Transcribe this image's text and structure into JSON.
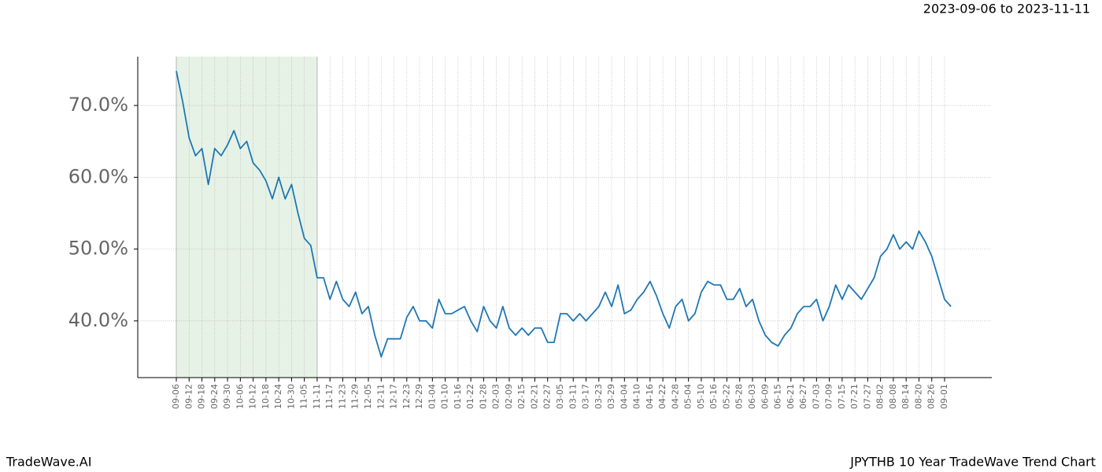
{
  "chart_data": {
    "type": "line",
    "subtitle": "2023-09-06 to 2023-11-11",
    "footer_left": "TradeWave.AI",
    "footer_right": "JPYTHB 10 Year TradeWave Trend Chart",
    "categories": [
      "09-06",
      null,
      "09-12",
      null,
      "09-18",
      null,
      "09-24",
      null,
      "09-30",
      null,
      "10-06",
      null,
      "10-12",
      null,
      "10-18",
      null,
      "10-24",
      null,
      "10-30",
      null,
      "11-05",
      null,
      "11-11",
      null,
      "11-17",
      null,
      "11-23",
      null,
      "11-29",
      null,
      "12-05",
      null,
      "12-11",
      null,
      "12-17",
      null,
      "12-23",
      null,
      "12-29",
      null,
      "01-04",
      null,
      "01-10",
      null,
      "01-16",
      null,
      "01-22",
      null,
      "01-28",
      null,
      "02-03",
      null,
      "02-09",
      null,
      "02-15",
      null,
      "02-21",
      null,
      "02-27",
      null,
      "03-05",
      null,
      "03-11",
      null,
      "03-17",
      null,
      "03-23",
      null,
      "03-29",
      null,
      "04-04",
      null,
      "04-10",
      null,
      "04-16",
      null,
      "04-22",
      null,
      "04-28",
      null,
      "05-04",
      null,
      "05-10",
      null,
      "05-16",
      null,
      "05-22",
      null,
      "05-28",
      null,
      "06-03",
      null,
      "06-09",
      null,
      "06-15",
      null,
      "06-21",
      null,
      "06-27",
      null,
      "07-03",
      null,
      "07-09",
      null,
      "07-15",
      null,
      "07-21",
      null,
      "07-27",
      null,
      "08-02",
      null,
      "08-08",
      null,
      "08-14",
      null,
      "08-20",
      null,
      "08-26",
      null,
      "09-01",
      null
    ],
    "values": [
      74.8,
      70.5,
      65.5,
      63,
      64,
      59,
      64,
      63,
      64.5,
      66.5,
      64,
      65,
      62,
      61,
      59.5,
      57,
      60,
      57,
      59,
      55,
      51.5,
      50.5,
      46,
      46,
      43,
      45.5,
      43,
      42,
      44,
      41,
      42,
      38,
      35,
      37.5,
      37.5,
      37.5,
      40.5,
      42,
      40,
      40,
      39,
      43,
      41,
      41,
      41.5,
      42,
      40,
      38.5,
      42,
      40,
      39,
      42,
      39,
      38,
      39,
      38,
      39,
      39,
      37,
      37,
      41,
      41,
      40,
      41,
      40,
      41,
      42,
      44,
      42,
      45,
      41,
      41.5,
      43,
      44,
      45.5,
      43.5,
      41,
      39,
      42,
      43,
      40,
      41,
      44,
      45.5,
      45,
      45,
      43,
      43,
      44.5,
      42,
      43,
      40,
      38,
      37,
      36.5,
      38,
      39,
      41,
      42,
      42,
      43,
      40,
      42,
      45,
      43,
      45,
      44,
      43,
      44.5,
      46,
      49,
      50,
      52,
      50,
      51,
      50,
      52.5,
      51,
      49,
      46,
      43,
      42
    ],
    "color": "#1f77b4",
    "highlight": [
      "09-06",
      "11-11"
    ],
    "highlight_color": "#e6f2e6",
    "ylim": [
      32.1,
      76.8
    ],
    "yticks": [
      {
        "value": 40,
        "label": "40.0%"
      },
      {
        "value": 50,
        "label": "50.0%"
      },
      {
        "value": 60,
        "label": "60.0%"
      },
      {
        "value": 70,
        "label": "70.0%"
      }
    ],
    "grid": true
  }
}
